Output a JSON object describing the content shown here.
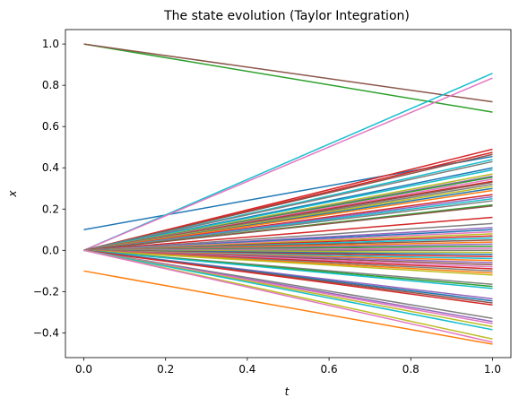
{
  "chart_data": {
    "type": "line",
    "title": "The state evolution (Taylor Integration)",
    "xlabel": "t",
    "ylabel": "x",
    "xlim": [
      -0.045,
      1.045
    ],
    "ylim": [
      -0.52,
      1.07
    ],
    "x_ticks": [
      0.0,
      0.2,
      0.4,
      0.6,
      0.8,
      1.0
    ],
    "x_tick_labels": [
      "0.0",
      "0.2",
      "0.4",
      "0.6",
      "0.8",
      "1.0"
    ],
    "y_ticks": [
      -0.4,
      -0.2,
      0.0,
      0.2,
      0.4,
      0.6,
      0.8,
      1.0
    ],
    "y_tick_labels": [
      "−0.4",
      "−0.2",
      "0.0",
      "0.2",
      "0.4",
      "0.6",
      "0.8",
      "1.0"
    ],
    "grid": false,
    "legend": "none",
    "colors": [
      "#1f77b4",
      "#ff7f0e",
      "#2ca02c",
      "#d62728",
      "#9467bd",
      "#8c564b",
      "#e377c2",
      "#7f7f7f",
      "#bcbd22",
      "#17becf"
    ],
    "x": [
      0.0,
      1.0
    ],
    "series": [
      {
        "values": [
          0.1,
          0.455
        ],
        "color": "#1f77b4"
      },
      {
        "values": [
          -0.1,
          -0.455
        ],
        "color": "#ff7f0e"
      },
      {
        "values": [
          1.0,
          0.67
        ],
        "color": "#2ca02c"
      },
      {
        "values": [
          1.0,
          0.72
        ],
        "color": "#8c564b"
      },
      {
        "values": [
          0.0,
          0.858
        ],
        "color": "#17becf"
      },
      {
        "values": [
          0.0,
          0.835
        ],
        "color": "#e377c2"
      },
      {
        "values": [
          0.0,
          0.49
        ],
        "color": "#d62728"
      },
      {
        "values": [
          0.0,
          0.475
        ],
        "color": "#d62728"
      },
      {
        "values": [
          0.0,
          0.465
        ],
        "color": "#8c564b"
      },
      {
        "values": [
          0.0,
          0.44
        ],
        "color": "#17becf"
      },
      {
        "values": [
          0.0,
          0.43
        ],
        "color": "#7f7f7f"
      },
      {
        "values": [
          0.0,
          0.4
        ],
        "color": "#1f77b4"
      },
      {
        "values": [
          0.0,
          0.39
        ],
        "color": "#17becf"
      },
      {
        "values": [
          0.0,
          0.37
        ],
        "color": "#bcbd22"
      },
      {
        "values": [
          0.0,
          0.36
        ],
        "color": "#9467bd"
      },
      {
        "values": [
          0.0,
          0.355
        ],
        "color": "#2ca02c"
      },
      {
        "values": [
          0.0,
          0.345
        ],
        "color": "#e377c2"
      },
      {
        "values": [
          0.0,
          0.335
        ],
        "color": "#d62728"
      },
      {
        "values": [
          0.0,
          0.33
        ],
        "color": "#8c564b"
      },
      {
        "values": [
          0.0,
          0.32
        ],
        "color": "#7f7f7f"
      },
      {
        "values": [
          0.0,
          0.31
        ],
        "color": "#bcbd22"
      },
      {
        "values": [
          0.0,
          0.3
        ],
        "color": "#1f77b4"
      },
      {
        "values": [
          0.0,
          0.29
        ],
        "color": "#ff7f0e"
      },
      {
        "values": [
          0.0,
          0.27
        ],
        "color": "#d62728"
      },
      {
        "values": [
          0.0,
          0.26
        ],
        "color": "#9467bd"
      },
      {
        "values": [
          0.0,
          0.25
        ],
        "color": "#17becf"
      },
      {
        "values": [
          0.0,
          0.24
        ],
        "color": "#7f7f7f"
      },
      {
        "values": [
          0.0,
          0.22
        ],
        "color": "#2ca02c"
      },
      {
        "values": [
          0.0,
          0.215
        ],
        "color": "#8c564b"
      },
      {
        "values": [
          0.0,
          0.16
        ],
        "color": "#d62728"
      },
      {
        "values": [
          0.0,
          0.13
        ],
        "color": "#7f7f7f"
      },
      {
        "values": [
          0.0,
          0.11
        ],
        "color": "#9467bd"
      },
      {
        "values": [
          0.0,
          0.1
        ],
        "color": "#1f77b4"
      },
      {
        "values": [
          0.0,
          0.09
        ],
        "color": "#e377c2"
      },
      {
        "values": [
          0.0,
          0.08
        ],
        "color": "#bcbd22"
      },
      {
        "values": [
          0.0,
          0.07
        ],
        "color": "#d62728"
      },
      {
        "values": [
          0.0,
          0.06
        ],
        "color": "#17becf"
      },
      {
        "values": [
          0.0,
          0.05
        ],
        "color": "#8c564b"
      },
      {
        "values": [
          0.0,
          0.04
        ],
        "color": "#ff7f0e"
      },
      {
        "values": [
          0.0,
          0.03
        ],
        "color": "#9467bd"
      },
      {
        "values": [
          0.0,
          0.02
        ],
        "color": "#2ca02c"
      },
      {
        "values": [
          0.0,
          0.01
        ],
        "color": "#e377c2"
      },
      {
        "values": [
          0.0,
          0.0
        ],
        "color": "#7f7f7f"
      },
      {
        "values": [
          0.0,
          -0.01
        ],
        "color": "#bcbd22"
      },
      {
        "values": [
          0.0,
          -0.02
        ],
        "color": "#1f77b4"
      },
      {
        "values": [
          0.0,
          -0.03
        ],
        "color": "#d62728"
      },
      {
        "values": [
          0.0,
          -0.04
        ],
        "color": "#17becf"
      },
      {
        "values": [
          0.0,
          -0.05
        ],
        "color": "#ff7f0e"
      },
      {
        "values": [
          0.0,
          -0.06
        ],
        "color": "#9467bd"
      },
      {
        "values": [
          0.0,
          -0.07
        ],
        "color": "#8c564b"
      },
      {
        "values": [
          0.0,
          -0.08
        ],
        "color": "#e377c2"
      },
      {
        "values": [
          0.0,
          -0.09
        ],
        "color": "#d62728"
      },
      {
        "values": [
          0.0,
          -0.1
        ],
        "color": "#7f7f7f"
      },
      {
        "values": [
          0.0,
          -0.11
        ],
        "color": "#ff7f0e"
      },
      {
        "values": [
          0.0,
          -0.12
        ],
        "color": "#bcbd22"
      },
      {
        "values": [
          0.0,
          -0.165
        ],
        "color": "#7f7f7f"
      },
      {
        "values": [
          0.0,
          -0.175
        ],
        "color": "#2ca02c"
      },
      {
        "values": [
          0.0,
          -0.185
        ],
        "color": "#17becf"
      },
      {
        "values": [
          0.0,
          -0.235
        ],
        "color": "#9467bd"
      },
      {
        "values": [
          0.0,
          -0.245
        ],
        "color": "#1f77b4"
      },
      {
        "values": [
          0.0,
          -0.255
        ],
        "color": "#8c564b"
      },
      {
        "values": [
          0.0,
          -0.265
        ],
        "color": "#d62728"
      },
      {
        "values": [
          0.0,
          -0.33
        ],
        "color": "#7f7f7f"
      },
      {
        "values": [
          0.0,
          -0.345
        ],
        "color": "#9467bd"
      },
      {
        "values": [
          0.0,
          -0.355
        ],
        "color": "#e377c2"
      },
      {
        "values": [
          0.0,
          -0.37
        ],
        "color": "#bcbd22"
      },
      {
        "values": [
          0.0,
          -0.385
        ],
        "color": "#17becf"
      },
      {
        "values": [
          0.0,
          -0.43
        ],
        "color": "#bcbd22"
      },
      {
        "values": [
          0.0,
          -0.445
        ],
        "color": "#e377c2"
      }
    ]
  }
}
